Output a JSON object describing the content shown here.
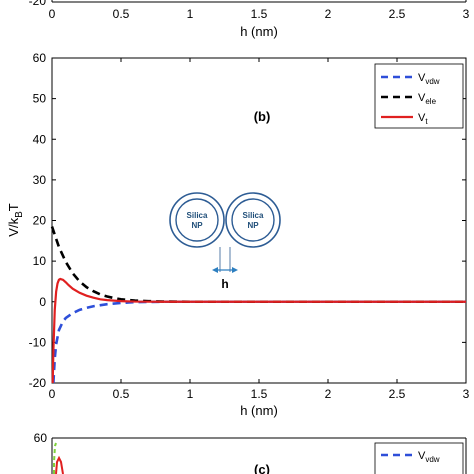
{
  "colors": {
    "vdw": "#2e4fd9",
    "ele": "#000000",
    "total": "#e02020",
    "particle": "#2d5c94",
    "green_curve": "#7fd13b"
  },
  "top_strip": {
    "partial_tick": "-20",
    "x_ticks": [
      "0",
      "0.5",
      "1",
      "1.5",
      "2",
      "2.5",
      "3"
    ],
    "xlabel": "h (nm)"
  },
  "chart_data": [
    {
      "panel": "(b)",
      "type": "line",
      "title": "",
      "xlabel": "h (nm)",
      "ylabel": "V/k_BT",
      "xlim": [
        0,
        3
      ],
      "ylim": [
        -20,
        60
      ],
      "x_ticks": [
        "0",
        "0.5",
        "1",
        "1.5",
        "2",
        "2.5",
        "3"
      ],
      "y_ticks": [
        "-20",
        "-10",
        "0",
        "10",
        "20",
        "30",
        "40",
        "50",
        "60"
      ],
      "grid": false,
      "legend_position": "top-right",
      "series": [
        {
          "name": "V_vdw",
          "legend_main": "V",
          "legend_sub": "vdw",
          "color_key": "vdw",
          "dash": "dashed",
          "x": [
            0.01,
            0.02,
            0.03,
            0.05,
            0.08,
            0.1,
            0.15,
            0.2,
            0.25,
            0.3,
            0.4,
            0.5,
            0.6,
            0.8,
            1.0,
            1.5,
            2.0,
            2.5,
            3.0
          ],
          "y": [
            -20,
            -14,
            -10.5,
            -7,
            -4.8,
            -4,
            -2.8,
            -2,
            -1.5,
            -1.1,
            -0.6,
            -0.3,
            -0.1,
            0,
            0,
            0,
            0,
            0,
            0
          ]
        },
        {
          "name": "V_ele",
          "legend_main": "V",
          "legend_sub": "ele",
          "color_key": "ele",
          "dash": "dashed",
          "x": [
            0,
            0.05,
            0.1,
            0.15,
            0.2,
            0.25,
            0.3,
            0.35,
            0.4,
            0.45,
            0.5,
            0.6,
            0.7,
            0.8,
            1.0,
            1.5,
            2.0,
            2.5,
            3.0
          ],
          "y": [
            18.5,
            13.5,
            9.8,
            7,
            5,
            3.6,
            2.6,
            1.8,
            1.3,
            0.9,
            0.6,
            0.3,
            0.15,
            0.05,
            0,
            0,
            0,
            0,
            0
          ]
        },
        {
          "name": "V_t",
          "legend_main": "V",
          "legend_sub": "t",
          "color_key": "total",
          "dash": "solid",
          "x": [
            0.005,
            0.01,
            0.02,
            0.03,
            0.04,
            0.05,
            0.06,
            0.08,
            0.1,
            0.12,
            0.15,
            0.2,
            0.25,
            0.3,
            0.35,
            0.4,
            0.5,
            0.6,
            0.8,
            1.0,
            1.5,
            2.0,
            2.5,
            3.0
          ],
          "y": [
            -20,
            -12,
            -2,
            2.5,
            4.5,
            5.4,
            5.6,
            5.4,
            4.8,
            4.1,
            3.2,
            2.2,
            1.5,
            1.0,
            0.6,
            0.4,
            0.15,
            0.05,
            0,
            0,
            0,
            0,
            0,
            0
          ]
        }
      ]
    },
    {
      "panel": "(c)",
      "type": "line",
      "title": "",
      "partial": true,
      "y_ticks": [
        "60"
      ],
      "legend_main": "V",
      "legend_sub": "vdw"
    }
  ],
  "inset": {
    "particle_label_line1": "Silica",
    "particle_label_line2": "NP",
    "gap_label": "h"
  }
}
